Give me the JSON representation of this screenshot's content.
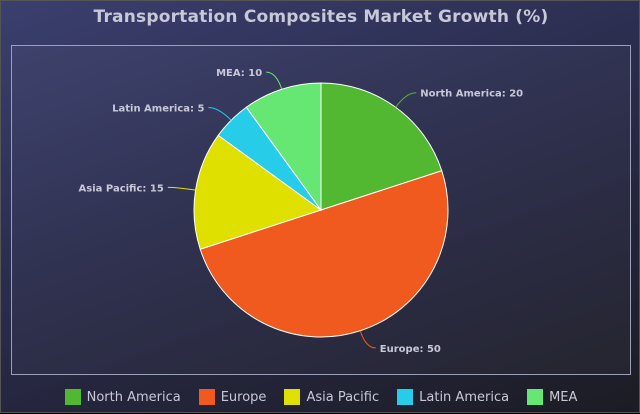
{
  "chart_data": {
    "type": "pie",
    "title": "Transportation Composites Market Growth (%)",
    "categories": [
      "North America",
      "Europe",
      "Asia Pacific",
      "Latin America",
      "MEA"
    ],
    "values": [
      20,
      50,
      15,
      5,
      10
    ],
    "colors": [
      "#52b832",
      "#f05a1e",
      "#e0e000",
      "#27cde8",
      "#66e672"
    ],
    "slice_labels": [
      "North America: 20",
      "Europe: 50",
      "Asia Pacific: 15",
      "Latin America: 5",
      "MEA: 10"
    ],
    "legend_position": "bottom",
    "start_angle": "top, clockwise",
    "border_color": "#ffffff"
  }
}
